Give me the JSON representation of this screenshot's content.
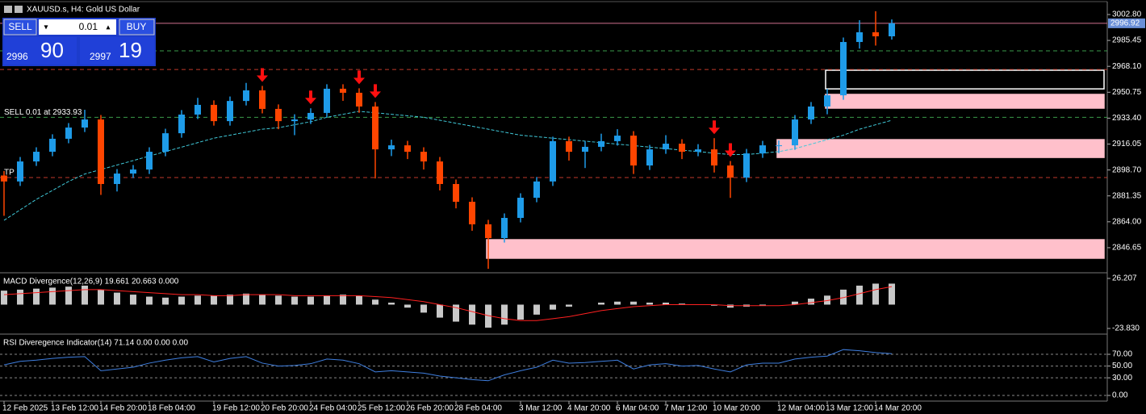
{
  "window_title": "XAUUSD.s, H4:  Gold US Dollar",
  "trade_panel": {
    "sell": "SELL",
    "buy": "BUY",
    "lot": "0.01",
    "bid_big": "2996",
    "bid_small": "90",
    "ask_big": "2997",
    "ask_small": "19"
  },
  "chart_data": [
    {
      "type": "candlestick",
      "categories": [
        "12 Feb 2025",
        null,
        null,
        "13 Feb 12:00",
        null,
        null,
        "14 Feb 20:00",
        null,
        null,
        "18 Feb 04:00",
        null,
        null,
        null,
        "19 Feb 12:00",
        null,
        null,
        "20 Feb 20:00",
        null,
        null,
        "24 Feb 04:00",
        null,
        null,
        "25 Feb 12:00",
        null,
        null,
        "26 Feb 20:00",
        null,
        null,
        "28 Feb 04:00",
        null,
        null,
        null,
        "3 Mar 12:00",
        null,
        null,
        "4 Mar 20:00",
        null,
        null,
        "6 Mar 04:00",
        null,
        null,
        "7 Mar 12:00",
        null,
        null,
        "10 Mar 20:00",
        null,
        null,
        null,
        "12 Mar 04:00",
        null,
        null,
        "13 Mar 12:00",
        null,
        null,
        "14 Mar 20:00",
        null
      ],
      "open": [
        2895.0,
        2891.0,
        2904.4,
        2910.9,
        2919.6,
        2927.1,
        2932.5,
        2889.3,
        2896.3,
        2899.0,
        2910.9,
        2923.3,
        2935.8,
        2942.3,
        2931.4,
        2944.9,
        2952.0,
        2939.6,
        2931.4,
        2932.5,
        2936.9,
        2953.1,
        2950.4,
        2941.2,
        2912.5,
        2915.2,
        2910.9,
        2904.4,
        2889.3,
        2877.4,
        2862.3,
        2853.1,
        2866.6,
        2880.1,
        2891.0,
        2918.0,
        2910.9,
        2914.2,
        2918.0,
        2921.7,
        2901.7,
        2912.5,
        2916.3,
        2910.9,
        2912.5,
        2901.7,
        2893.6,
        2909.8,
        2915.2,
        2915.2,
        2932.5,
        2941.2,
        2948.7,
        2984.4,
        2990.9,
        2988.2
      ],
      "high": [
        2898.0,
        2907.4,
        2913.9,
        2922.6,
        2930.1,
        2939.0,
        2935.5,
        2899.3,
        2902.0,
        2913.9,
        2926.3,
        2938.8,
        2947.0,
        2945.3,
        2947.9,
        2957.0,
        2955.0,
        2942.6,
        2936.0,
        2940.0,
        2956.1,
        2956.1,
        2953.4,
        2944.2,
        2919.0,
        2918.2,
        2913.9,
        2907.4,
        2892.3,
        2880.4,
        2865.3,
        2869.6,
        2883.1,
        2894.0,
        2921.0,
        2921.0,
        2918.0,
        2923.0,
        2926.0,
        2924.7,
        2915.5,
        2922.0,
        2919.3,
        2916.0,
        2920.0,
        2904.7,
        2912.8,
        2918.2,
        2918.5,
        2935.5,
        2944.2,
        2953.0,
        2987.4,
        2999.0,
        3005.0,
        2999.5
      ],
      "low": [
        2868.0,
        2888.0,
        2901.4,
        2907.9,
        2916.6,
        2924.1,
        2882.0,
        2884.3,
        2893.3,
        2896.0,
        2907.9,
        2920.3,
        2932.8,
        2928.4,
        2928.4,
        2941.9,
        2936.6,
        2926.0,
        2922.0,
        2929.5,
        2933.9,
        2945.0,
        2937.0,
        2893.0,
        2908.0,
        2906.0,
        2899.0,
        2885.0,
        2873.0,
        2858.0,
        2832.5,
        2850.1,
        2863.6,
        2877.1,
        2888.0,
        2905.0,
        2900.0,
        2911.2,
        2915.0,
        2896.0,
        2898.7,
        2909.5,
        2906.0,
        2907.9,
        2897.0,
        2880.0,
        2890.6,
        2906.8,
        2910.0,
        2912.2,
        2929.5,
        2936.0,
        2945.7,
        2980.0,
        2982.0,
        2986.0
      ],
      "close": [
        2891.0,
        2904.4,
        2910.9,
        2919.6,
        2927.1,
        2932.5,
        2889.3,
        2896.3,
        2899.0,
        2910.9,
        2923.3,
        2935.8,
        2942.3,
        2931.4,
        2944.9,
        2952.0,
        2939.6,
        2931.4,
        2932.5,
        2936.9,
        2953.1,
        2950.4,
        2941.2,
        2912.5,
        2915.2,
        2910.9,
        2904.4,
        2889.3,
        2877.4,
        2862.3,
        2853.1,
        2866.6,
        2880.1,
        2891.0,
        2918.0,
        2910.9,
        2914.2,
        2918.0,
        2921.7,
        2901.7,
        2912.5,
        2916.3,
        2910.9,
        2912.5,
        2901.7,
        2893.6,
        2909.8,
        2915.2,
        2915.2,
        2932.5,
        2941.2,
        2948.7,
        2984.4,
        2990.9,
        2988.2,
        2996.92
      ],
      "up_color": "#1e9be8",
      "down_color": "#ff4500",
      "ylim": [
        2830.4,
        3010.9
      ],
      "yticks": [
        {
          "value": 3002.8,
          "label": "3002.80"
        },
        2985.45,
        {
          "value": 2968.1,
          "label": "2968.10"
        },
        2950.75,
        {
          "value": 2933.4,
          "label": "2933.40"
        },
        2916.05,
        {
          "value": 2898.7,
          "label": "2898.70"
        },
        2881.35,
        {
          "value": 2864,
          "label": "2864.00"
        },
        2846.65
      ],
      "moving_average": {
        "color": "#40c8d8",
        "values": [
          2865,
          2872,
          2879,
          2885,
          2891,
          2896,
          2899,
          2902,
          2905,
          2908,
          2911,
          2914,
          2917,
          2920,
          2922,
          2924,
          2926,
          2927,
          2929,
          2931,
          2934,
          2936,
          2938,
          2937,
          2936,
          2935,
          2934,
          2932,
          2930,
          2928,
          2926,
          2924,
          2922,
          2921,
          2920,
          2919,
          2918,
          2917,
          2916,
          2915,
          2914,
          2913,
          2912,
          2911,
          2910,
          2909,
          2909,
          2910,
          2911,
          2913,
          2916,
          2919,
          2922,
          2926,
          2929,
          2932
        ]
      },
      "levels": [
        {
          "value": 2978.5,
          "color": "#3a9a4a"
        },
        {
          "value": 2966.0,
          "color": "#c0392b"
        },
        {
          "value": 2933.93,
          "color": "#3a9a4a"
        },
        {
          "value": 2893.6,
          "color": "#c0392b"
        }
      ],
      "bid_color": "#d07090",
      "order_label": "SELL 0.01 at 2933.93",
      "tp_label": "TP",
      "zones": [
        {
          "start": 51,
          "low": 2953.0,
          "high": 2965.5,
          "fill": "none",
          "stroke": "#ffffff"
        },
        {
          "start": 51,
          "low": 2940.1,
          "high": 2949.3,
          "fill": "#ffc0cb",
          "stroke": "#ffc0cb"
        },
        {
          "start": 48,
          "low": 2907.1,
          "high": 2919.0,
          "fill": "#ffc0cb",
          "stroke": "#ffc0cb"
        },
        {
          "start": 30,
          "low": 2839.6,
          "high": 2852.0,
          "fill": "#ffc0cb",
          "stroke": "#ffc0cb"
        }
      ],
      "signal_arrows": {
        "color": "#ff1010",
        "indices": [
          16,
          19,
          22,
          23,
          44,
          45
        ]
      }
    },
    {
      "type": "bar",
      "title": "MACD Divergence(12,26,9) 19.661 20.663 0.000",
      "values": [
        14,
        15,
        16,
        17,
        18,
        19,
        15,
        12,
        10,
        8,
        7,
        8,
        9,
        9,
        10,
        11,
        10,
        9,
        8,
        8,
        9,
        10,
        9,
        5,
        2,
        -3,
        -8,
        -13,
        -17,
        -20,
        -23,
        -20,
        -15,
        -10,
        -5,
        -2,
        0,
        2,
        3,
        3,
        2,
        2,
        1,
        0,
        -1,
        -3,
        -2,
        -1,
        0,
        3,
        6,
        9,
        15,
        19,
        21,
        21
      ],
      "color": "#c8c8c8",
      "signal": {
        "color": "#ff2020",
        "values": [
          10,
          11,
          12,
          13,
          14,
          15,
          15,
          14,
          13,
          12,
          11,
          10,
          10,
          9,
          9,
          10,
          10,
          10,
          9,
          9,
          9,
          9,
          9,
          8,
          7,
          5,
          3,
          0,
          -3,
          -7,
          -11,
          -14,
          -16,
          -16,
          -14,
          -12,
          -9,
          -6,
          -4,
          -2,
          -1,
          0,
          0,
          0,
          0,
          -1,
          -1,
          -1,
          -1,
          0,
          2,
          4,
          7,
          11,
          15,
          18
        ]
      },
      "ylim": [
        -28.67,
        30.24
      ],
      "yticks": [
        26.207,
        {
          "value": -23.83,
          "label": "-23.830"
        }
      ]
    },
    {
      "type": "line",
      "title": "RSI Diveregence Indicator(14) 71.14 0.00 0.00 0.00",
      "values": [
        52,
        58,
        60,
        63,
        65,
        66,
        42,
        45,
        48,
        55,
        60,
        64,
        66,
        57,
        63,
        66,
        55,
        50,
        51,
        54,
        62,
        60,
        54,
        40,
        42,
        40,
        38,
        33,
        30,
        27,
        25,
        35,
        42,
        48,
        60,
        55,
        56,
        58,
        60,
        45,
        52,
        54,
        50,
        51,
        45,
        40,
        52,
        55,
        55,
        62,
        65,
        67,
        78,
        76,
        73,
        71
      ],
      "color": "#3f7fe0",
      "ylim": [
        -9.6,
        101.6
      ],
      "yticks": [
        {
          "value": 70,
          "label": "70.00"
        },
        {
          "value": 50,
          "label": "50.00"
        },
        {
          "value": 30,
          "label": "30.00"
        },
        {
          "value": 0,
          "label": "0.00"
        }
      ],
      "grid": true
    }
  ]
}
